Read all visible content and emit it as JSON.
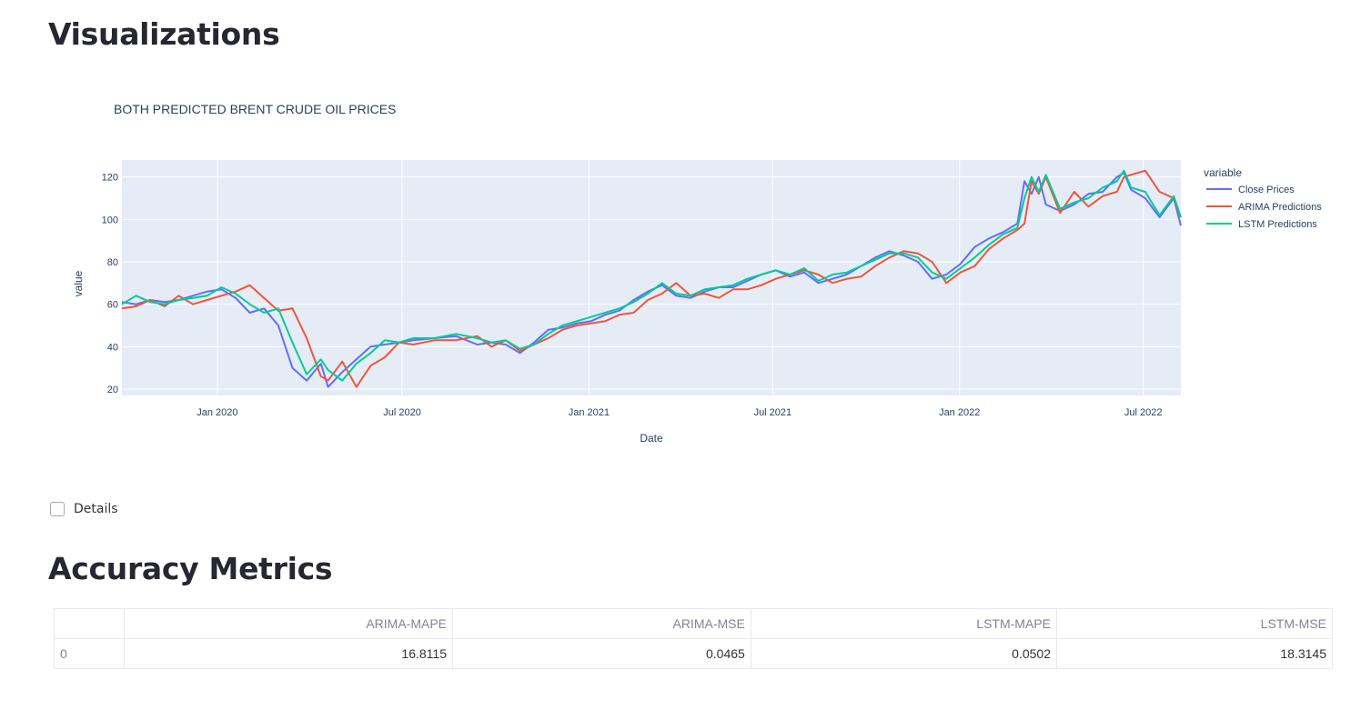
{
  "sections": {
    "visualizations_title": "Visualizations",
    "accuracy_title": "Accuracy Metrics"
  },
  "details_checkbox": {
    "label": "Details",
    "checked": false
  },
  "chart_data": {
    "type": "line",
    "title": "BOTH PREDICTED BRENT CRUDE OIL PRICES",
    "xlabel": "Date",
    "ylabel": "value",
    "x_ticks": [
      "Jan 2020",
      "Jul 2020",
      "Jan 2021",
      "Jul 2021",
      "Jan 2022",
      "Jul 2022"
    ],
    "y_ticks": [
      20,
      40,
      60,
      80,
      100,
      120
    ],
    "ylim": [
      17,
      128
    ],
    "xlim": [
      "2019-09-29",
      "2022-08-07"
    ],
    "grid": true,
    "legend_title": "variable",
    "legend_position": "right",
    "series": [
      {
        "name": "Close Prices",
        "color": "#636efa",
        "points": [
          [
            "2019-09-29",
            61
          ],
          [
            "2019-10-13",
            60
          ],
          [
            "2019-10-27",
            62
          ],
          [
            "2019-11-10",
            61
          ],
          [
            "2019-11-24",
            62
          ],
          [
            "2019-12-08",
            64
          ],
          [
            "2019-12-22",
            66
          ],
          [
            "2020-01-05",
            67
          ],
          [
            "2020-01-19",
            63
          ],
          [
            "2020-02-02",
            56
          ],
          [
            "2020-02-16",
            58
          ],
          [
            "2020-03-01",
            50
          ],
          [
            "2020-03-15",
            30
          ],
          [
            "2020-03-29",
            24
          ],
          [
            "2020-04-12",
            32
          ],
          [
            "2020-04-19",
            21
          ],
          [
            "2020-05-03",
            28
          ],
          [
            "2020-05-17",
            34
          ],
          [
            "2020-05-31",
            40
          ],
          [
            "2020-06-14",
            41
          ],
          [
            "2020-06-28",
            42
          ],
          [
            "2020-07-12",
            43
          ],
          [
            "2020-08-02",
            44
          ],
          [
            "2020-08-23",
            45
          ],
          [
            "2020-09-13",
            41
          ],
          [
            "2020-09-27",
            42
          ],
          [
            "2020-10-11",
            41
          ],
          [
            "2020-10-25",
            37
          ],
          [
            "2020-11-08",
            42
          ],
          [
            "2020-11-22",
            48
          ],
          [
            "2020-12-06",
            49
          ],
          [
            "2020-12-20",
            51
          ],
          [
            "2021-01-03",
            52
          ],
          [
            "2021-01-17",
            55
          ],
          [
            "2021-01-31",
            57
          ],
          [
            "2021-02-14",
            62
          ],
          [
            "2021-02-28",
            66
          ],
          [
            "2021-03-14",
            69
          ],
          [
            "2021-03-28",
            64
          ],
          [
            "2021-04-11",
            63
          ],
          [
            "2021-04-25",
            66
          ],
          [
            "2021-05-09",
            68
          ],
          [
            "2021-05-23",
            68
          ],
          [
            "2021-06-06",
            71
          ],
          [
            "2021-06-20",
            74
          ],
          [
            "2021-07-04",
            76
          ],
          [
            "2021-07-18",
            73
          ],
          [
            "2021-08-01",
            75
          ],
          [
            "2021-08-15",
            70
          ],
          [
            "2021-08-29",
            72
          ],
          [
            "2021-09-12",
            74
          ],
          [
            "2021-09-26",
            78
          ],
          [
            "2021-10-10",
            82
          ],
          [
            "2021-10-24",
            85
          ],
          [
            "2021-11-07",
            83
          ],
          [
            "2021-11-21",
            80
          ],
          [
            "2021-12-05",
            72
          ],
          [
            "2021-12-19",
            74
          ],
          [
            "2022-01-02",
            79
          ],
          [
            "2022-01-16",
            87
          ],
          [
            "2022-01-30",
            91
          ],
          [
            "2022-02-13",
            94
          ],
          [
            "2022-02-27",
            98
          ],
          [
            "2022-03-06",
            118
          ],
          [
            "2022-03-13",
            112
          ],
          [
            "2022-03-20",
            120
          ],
          [
            "2022-03-27",
            107
          ],
          [
            "2022-04-10",
            104
          ],
          [
            "2022-04-24",
            107
          ],
          [
            "2022-05-08",
            112
          ],
          [
            "2022-05-22",
            113
          ],
          [
            "2022-06-05",
            120
          ],
          [
            "2022-06-12",
            122
          ],
          [
            "2022-06-19",
            114
          ],
          [
            "2022-07-03",
            110
          ],
          [
            "2022-07-17",
            101
          ],
          [
            "2022-07-31",
            110
          ],
          [
            "2022-08-07",
            97
          ]
        ]
      },
      {
        "name": "ARIMA Predictions",
        "color": "#ef553b",
        "points": [
          [
            "2019-09-29",
            58
          ],
          [
            "2019-10-13",
            59
          ],
          [
            "2019-10-27",
            62
          ],
          [
            "2019-11-10",
            59
          ],
          [
            "2019-11-24",
            64
          ],
          [
            "2019-12-08",
            60
          ],
          [
            "2019-12-22",
            62
          ],
          [
            "2020-01-05",
            64
          ],
          [
            "2020-01-19",
            66
          ],
          [
            "2020-02-02",
            69
          ],
          [
            "2020-02-16",
            63
          ],
          [
            "2020-03-01",
            57
          ],
          [
            "2020-03-15",
            58
          ],
          [
            "2020-03-29",
            44
          ],
          [
            "2020-04-12",
            26
          ],
          [
            "2020-04-19",
            24
          ],
          [
            "2020-05-03",
            33
          ],
          [
            "2020-05-17",
            21
          ],
          [
            "2020-05-31",
            31
          ],
          [
            "2020-06-14",
            35
          ],
          [
            "2020-06-28",
            42
          ],
          [
            "2020-07-12",
            41
          ],
          [
            "2020-08-02",
            43
          ],
          [
            "2020-08-23",
            43
          ],
          [
            "2020-09-13",
            45
          ],
          [
            "2020-09-27",
            40
          ],
          [
            "2020-10-11",
            43
          ],
          [
            "2020-10-25",
            38
          ],
          [
            "2020-11-08",
            41
          ],
          [
            "2020-11-22",
            44
          ],
          [
            "2020-12-06",
            48
          ],
          [
            "2020-12-20",
            50
          ],
          [
            "2021-01-03",
            51
          ],
          [
            "2021-01-17",
            52
          ],
          [
            "2021-01-31",
            55
          ],
          [
            "2021-02-14",
            56
          ],
          [
            "2021-02-28",
            62
          ],
          [
            "2021-03-14",
            65
          ],
          [
            "2021-03-28",
            70
          ],
          [
            "2021-04-11",
            64
          ],
          [
            "2021-04-25",
            65
          ],
          [
            "2021-05-09",
            63
          ],
          [
            "2021-05-23",
            67
          ],
          [
            "2021-06-06",
            67
          ],
          [
            "2021-06-20",
            69
          ],
          [
            "2021-07-04",
            72
          ],
          [
            "2021-07-18",
            74
          ],
          [
            "2021-08-01",
            76
          ],
          [
            "2021-08-15",
            74
          ],
          [
            "2021-08-29",
            70
          ],
          [
            "2021-09-12",
            72
          ],
          [
            "2021-09-26",
            73
          ],
          [
            "2021-10-10",
            78
          ],
          [
            "2021-10-24",
            82
          ],
          [
            "2021-11-07",
            85
          ],
          [
            "2021-11-21",
            84
          ],
          [
            "2021-12-05",
            80
          ],
          [
            "2021-12-19",
            70
          ],
          [
            "2022-01-02",
            75
          ],
          [
            "2022-01-16",
            78
          ],
          [
            "2022-01-30",
            86
          ],
          [
            "2022-02-13",
            91
          ],
          [
            "2022-02-27",
            95
          ],
          [
            "2022-03-06",
            98
          ],
          [
            "2022-03-13",
            118
          ],
          [
            "2022-03-20",
            112
          ],
          [
            "2022-03-27",
            120
          ],
          [
            "2022-04-10",
            103
          ],
          [
            "2022-04-24",
            113
          ],
          [
            "2022-05-08",
            106
          ],
          [
            "2022-05-22",
            111
          ],
          [
            "2022-06-05",
            113
          ],
          [
            "2022-06-12",
            120
          ],
          [
            "2022-06-19",
            121
          ],
          [
            "2022-07-03",
            123
          ],
          [
            "2022-07-17",
            113
          ],
          [
            "2022-07-31",
            110
          ],
          [
            "2022-08-07",
            101
          ]
        ]
      },
      {
        "name": "LSTM Predictions",
        "color": "#00cc96",
        "points": [
          [
            "2019-09-29",
            60
          ],
          [
            "2019-10-13",
            64
          ],
          [
            "2019-10-27",
            61
          ],
          [
            "2019-11-10",
            60
          ],
          [
            "2019-11-24",
            62
          ],
          [
            "2019-12-08",
            63
          ],
          [
            "2019-12-22",
            64
          ],
          [
            "2020-01-05",
            68
          ],
          [
            "2020-01-19",
            65
          ],
          [
            "2020-02-02",
            60
          ],
          [
            "2020-02-16",
            56
          ],
          [
            "2020-03-01",
            58
          ],
          [
            "2020-03-15",
            42
          ],
          [
            "2020-03-29",
            27
          ],
          [
            "2020-04-12",
            34
          ],
          [
            "2020-04-19",
            29
          ],
          [
            "2020-05-03",
            24
          ],
          [
            "2020-05-17",
            32
          ],
          [
            "2020-05-31",
            37
          ],
          [
            "2020-06-14",
            43
          ],
          [
            "2020-06-28",
            42
          ],
          [
            "2020-07-12",
            44
          ],
          [
            "2020-08-02",
            44
          ],
          [
            "2020-08-23",
            46
          ],
          [
            "2020-09-13",
            44
          ],
          [
            "2020-09-27",
            42
          ],
          [
            "2020-10-11",
            43
          ],
          [
            "2020-10-25",
            39
          ],
          [
            "2020-11-08",
            41
          ],
          [
            "2020-11-22",
            46
          ],
          [
            "2020-12-06",
            50
          ],
          [
            "2020-12-20",
            52
          ],
          [
            "2021-01-03",
            54
          ],
          [
            "2021-01-17",
            56
          ],
          [
            "2021-01-31",
            58
          ],
          [
            "2021-02-14",
            61
          ],
          [
            "2021-02-28",
            65
          ],
          [
            "2021-03-14",
            70
          ],
          [
            "2021-03-28",
            65
          ],
          [
            "2021-04-11",
            64
          ],
          [
            "2021-04-25",
            67
          ],
          [
            "2021-05-09",
            68
          ],
          [
            "2021-05-23",
            69
          ],
          [
            "2021-06-06",
            72
          ],
          [
            "2021-06-20",
            74
          ],
          [
            "2021-07-04",
            76
          ],
          [
            "2021-07-18",
            74
          ],
          [
            "2021-08-01",
            77
          ],
          [
            "2021-08-15",
            71
          ],
          [
            "2021-08-29",
            74
          ],
          [
            "2021-09-12",
            75
          ],
          [
            "2021-09-26",
            78
          ],
          [
            "2021-10-10",
            81
          ],
          [
            "2021-10-24",
            84
          ],
          [
            "2021-11-07",
            84
          ],
          [
            "2021-11-21",
            82
          ],
          [
            "2021-12-05",
            75
          ],
          [
            "2021-12-19",
            72
          ],
          [
            "2022-01-02",
            77
          ],
          [
            "2022-01-16",
            82
          ],
          [
            "2022-01-30",
            88
          ],
          [
            "2022-02-13",
            93
          ],
          [
            "2022-02-27",
            96
          ],
          [
            "2022-03-06",
            110
          ],
          [
            "2022-03-13",
            120
          ],
          [
            "2022-03-20",
            113
          ],
          [
            "2022-03-27",
            121
          ],
          [
            "2022-04-10",
            105
          ],
          [
            "2022-04-24",
            108
          ],
          [
            "2022-05-08",
            110
          ],
          [
            "2022-05-22",
            115
          ],
          [
            "2022-06-05",
            118
          ],
          [
            "2022-06-12",
            123
          ],
          [
            "2022-06-19",
            115
          ],
          [
            "2022-07-03",
            113
          ],
          [
            "2022-07-17",
            102
          ],
          [
            "2022-07-31",
            111
          ],
          [
            "2022-08-07",
            101
          ]
        ]
      }
    ]
  },
  "metrics_table": {
    "columns": [
      "ARIMA-MAPE",
      "ARIMA-MSE",
      "LSTM-MAPE",
      "LSTM-MSE"
    ],
    "rows": [
      {
        "index": "0",
        "values": [
          "16.8115",
          "0.0465",
          "0.0502",
          "18.3145"
        ]
      }
    ]
  }
}
